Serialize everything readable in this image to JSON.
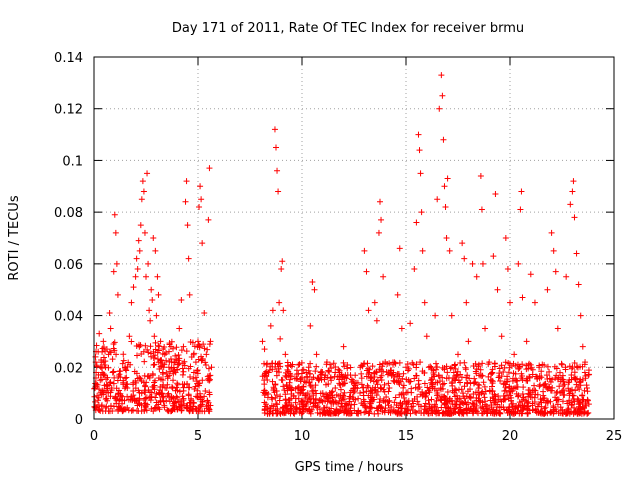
{
  "chart_data": {
    "type": "scatter",
    "title": "Day 171 of 2011, Rate Of TEC Index for receiver brmu",
    "xlabel": "GPS time / hours",
    "ylabel": "ROTI / TECUs",
    "xlim": [
      0,
      25
    ],
    "ylim": [
      0,
      0.14
    ],
    "xticks": [
      "0",
      "5",
      "10",
      "15",
      "20",
      "25"
    ],
    "yticks": [
      "0",
      "0.02",
      "0.04",
      "0.06",
      "0.08",
      "0.1",
      "0.12",
      "0.14"
    ],
    "grid": true,
    "marker": "+",
    "color": "#ff0000",
    "series": [
      {
        "points": [
          [
            0.05,
            0.012
          ],
          [
            0.1,
            0.018
          ],
          [
            0.15,
            0.009
          ],
          [
            0.2,
            0.026
          ],
          [
            0.25,
            0.033
          ],
          [
            0.3,
            0.015
          ],
          [
            0.35,
            0.022
          ],
          [
            0.4,
            0.011
          ],
          [
            0.45,
            0.03
          ],
          [
            0.5,
            0.013
          ],
          [
            0.55,
            0.02
          ],
          [
            0.6,
            0.008
          ],
          [
            0.65,
            0.016
          ],
          [
            0.7,
            0.025
          ],
          [
            0.75,
            0.041
          ],
          [
            0.8,
            0.035
          ],
          [
            0.85,
            0.012
          ],
          [
            0.9,
            0.018
          ],
          [
            0.95,
            0.057
          ],
          [
            1.0,
            0.079
          ],
          [
            1.05,
            0.072
          ],
          [
            1.1,
            0.06
          ],
          [
            1.15,
            0.048
          ],
          [
            1.2,
            0.011
          ],
          [
            1.3,
            0.009
          ],
          [
            1.4,
            0.014
          ],
          [
            1.5,
            0.02
          ],
          [
            1.6,
            0.012
          ],
          [
            1.7,
            0.032
          ],
          [
            1.8,
            0.045
          ],
          [
            1.9,
            0.051
          ],
          [
            2.0,
            0.055
          ],
          [
            2.05,
            0.062
          ],
          [
            2.1,
            0.058
          ],
          [
            2.15,
            0.069
          ],
          [
            2.2,
            0.065
          ],
          [
            2.25,
            0.075
          ],
          [
            2.3,
            0.085
          ],
          [
            2.35,
            0.092
          ],
          [
            2.4,
            0.088
          ],
          [
            2.45,
            0.072
          ],
          [
            2.5,
            0.055
          ],
          [
            2.55,
            0.095
          ],
          [
            2.6,
            0.06
          ],
          [
            2.65,
            0.042
          ],
          [
            2.7,
            0.038
          ],
          [
            2.75,
            0.05
          ],
          [
            2.8,
            0.046
          ],
          [
            2.85,
            0.07
          ],
          [
            2.9,
            0.032
          ],
          [
            2.95,
            0.065
          ],
          [
            3.0,
            0.04
          ],
          [
            3.05,
            0.055
          ],
          [
            3.1,
            0.048
          ],
          [
            3.2,
            0.03
          ],
          [
            3.3,
            0.018
          ],
          [
            3.4,
            0.025
          ],
          [
            3.5,
            0.012
          ],
          [
            3.6,
            0.02
          ],
          [
            3.7,
            0.028
          ],
          [
            3.8,
            0.015
          ],
          [
            3.9,
            0.022
          ],
          [
            4.0,
            0.019
          ],
          [
            4.1,
            0.035
          ],
          [
            4.2,
            0.046
          ],
          [
            4.3,
            0.028
          ],
          [
            4.4,
            0.084
          ],
          [
            4.45,
            0.092
          ],
          [
            4.5,
            0.075
          ],
          [
            4.55,
            0.062
          ],
          [
            4.6,
            0.048
          ],
          [
            4.7,
            0.024
          ],
          [
            4.8,
            0.018
          ],
          [
            4.9,
            0.022
          ],
          [
            5.0,
            0.03
          ],
          [
            5.05,
            0.082
          ],
          [
            5.1,
            0.09
          ],
          [
            5.15,
            0.085
          ],
          [
            5.2,
            0.068
          ],
          [
            5.3,
            0.041
          ],
          [
            5.4,
            0.025
          ],
          [
            5.5,
            0.077
          ],
          [
            5.55,
            0.097
          ],
          [
            5.6,
            0.03
          ],
          [
            5.65,
            0.02
          ],
          [
            8.1,
            0.03
          ],
          [
            8.2,
            0.027
          ],
          [
            8.3,
            0.021
          ],
          [
            8.4,
            0.018
          ],
          [
            8.5,
            0.036
          ],
          [
            8.6,
            0.042
          ],
          [
            8.7,
            0.112
          ],
          [
            8.75,
            0.105
          ],
          [
            8.8,
            0.096
          ],
          [
            8.85,
            0.088
          ],
          [
            8.9,
            0.045
          ],
          [
            8.95,
            0.031
          ],
          [
            9.0,
            0.058
          ],
          [
            9.05,
            0.061
          ],
          [
            9.1,
            0.042
          ],
          [
            9.2,
            0.025
          ],
          [
            9.3,
            0.019
          ],
          [
            9.4,
            0.014
          ],
          [
            9.5,
            0.011
          ],
          [
            9.6,
            0.009
          ],
          [
            9.7,
            0.008
          ],
          [
            9.8,
            0.012
          ],
          [
            9.9,
            0.01
          ],
          [
            10.0,
            0.007
          ],
          [
            10.2,
            0.018
          ],
          [
            10.4,
            0.036
          ],
          [
            10.5,
            0.053
          ],
          [
            10.6,
            0.05
          ],
          [
            10.7,
            0.025
          ],
          [
            10.8,
            0.015
          ],
          [
            11.0,
            0.01
          ],
          [
            11.2,
            0.022
          ],
          [
            11.4,
            0.015
          ],
          [
            11.6,
            0.012
          ],
          [
            11.8,
            0.018
          ],
          [
            12.0,
            0.028
          ],
          [
            12.2,
            0.017
          ],
          [
            12.4,
            0.011
          ],
          [
            12.6,
            0.014
          ],
          [
            12.8,
            0.02
          ],
          [
            13.0,
            0.065
          ],
          [
            13.1,
            0.057
          ],
          [
            13.2,
            0.042
          ],
          [
            13.3,
            0.015
          ],
          [
            13.4,
            0.012
          ],
          [
            13.5,
            0.045
          ],
          [
            13.6,
            0.038
          ],
          [
            13.7,
            0.072
          ],
          [
            13.75,
            0.084
          ],
          [
            13.8,
            0.077
          ],
          [
            13.9,
            0.055
          ],
          [
            14.0,
            0.022
          ],
          [
            14.2,
            0.012
          ],
          [
            14.4,
            0.018
          ],
          [
            14.6,
            0.048
          ],
          [
            14.7,
            0.066
          ],
          [
            14.8,
            0.035
          ],
          [
            14.9,
            0.013
          ],
          [
            15.0,
            0.02
          ],
          [
            15.2,
            0.037
          ],
          [
            15.4,
            0.058
          ],
          [
            15.5,
            0.076
          ],
          [
            15.6,
            0.11
          ],
          [
            15.65,
            0.104
          ],
          [
            15.7,
            0.095
          ],
          [
            15.75,
            0.08
          ],
          [
            15.8,
            0.065
          ],
          [
            15.9,
            0.045
          ],
          [
            16.0,
            0.032
          ],
          [
            16.1,
            0.02
          ],
          [
            16.2,
            0.015
          ],
          [
            16.4,
            0.04
          ],
          [
            16.5,
            0.085
          ],
          [
            16.6,
            0.12
          ],
          [
            16.7,
            0.133
          ],
          [
            16.75,
            0.125
          ],
          [
            16.8,
            0.108
          ],
          [
            16.85,
            0.09
          ],
          [
            16.9,
            0.082
          ],
          [
            16.95,
            0.07
          ],
          [
            17.0,
            0.093
          ],
          [
            17.1,
            0.065
          ],
          [
            17.2,
            0.04
          ],
          [
            17.3,
            0.018
          ],
          [
            17.5,
            0.025
          ],
          [
            17.7,
            0.068
          ],
          [
            17.8,
            0.062
          ],
          [
            17.9,
            0.045
          ],
          [
            18.0,
            0.03
          ],
          [
            18.2,
            0.06
          ],
          [
            18.4,
            0.055
          ],
          [
            18.6,
            0.094
          ],
          [
            18.65,
            0.081
          ],
          [
            18.7,
            0.06
          ],
          [
            18.8,
            0.035
          ],
          [
            19.0,
            0.022
          ],
          [
            19.2,
            0.063
          ],
          [
            19.3,
            0.087
          ],
          [
            19.4,
            0.05
          ],
          [
            19.6,
            0.032
          ],
          [
            19.8,
            0.07
          ],
          [
            19.9,
            0.058
          ],
          [
            20.0,
            0.045
          ],
          [
            20.2,
            0.025
          ],
          [
            20.4,
            0.06
          ],
          [
            20.5,
            0.081
          ],
          [
            20.55,
            0.088
          ],
          [
            20.6,
            0.047
          ],
          [
            20.8,
            0.03
          ],
          [
            21.0,
            0.056
          ],
          [
            21.2,
            0.045
          ],
          [
            21.4,
            0.02
          ],
          [
            21.6,
            0.013
          ],
          [
            21.8,
            0.05
          ],
          [
            22.0,
            0.072
          ],
          [
            22.1,
            0.065
          ],
          [
            22.2,
            0.057
          ],
          [
            22.3,
            0.035
          ],
          [
            22.5,
            0.021
          ],
          [
            22.7,
            0.055
          ],
          [
            22.9,
            0.083
          ],
          [
            23.0,
            0.088
          ],
          [
            23.05,
            0.092
          ],
          [
            23.1,
            0.078
          ],
          [
            23.2,
            0.064
          ],
          [
            23.3,
            0.052
          ],
          [
            23.4,
            0.04
          ],
          [
            23.5,
            0.028
          ],
          [
            23.6,
            0.018
          ],
          [
            23.7,
            0.012
          ]
        ]
      }
    ],
    "noise_bands": [
      {
        "x": [
          0.0,
          5.6
        ],
        "y": [
          0.003,
          0.03
        ]
      },
      {
        "x": [
          8.1,
          23.8
        ],
        "y": [
          0.002,
          0.022
        ]
      }
    ]
  }
}
